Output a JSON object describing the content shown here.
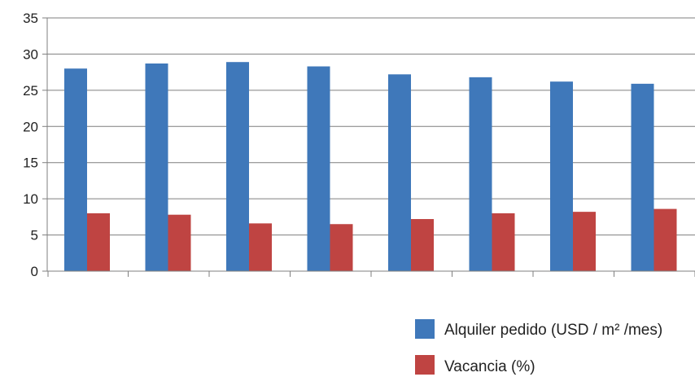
{
  "chart_data": {
    "type": "bar",
    "categories": [
      "",
      "",
      "",
      "",
      "",
      "",
      "",
      ""
    ],
    "series": [
      {
        "name": "Alquiler pedido (USD / m² /mes)",
        "color": "#3f78ba",
        "values": [
          28.0,
          28.7,
          28.9,
          28.3,
          27.2,
          26.8,
          26.2,
          25.9
        ]
      },
      {
        "name": "Vacancia (%)",
        "color": "#bf4442",
        "values": [
          8.0,
          7.8,
          6.6,
          6.5,
          7.2,
          8.0,
          8.2,
          8.6
        ]
      }
    ],
    "ylim": [
      0,
      35
    ],
    "yticks": [
      "0",
      "5",
      "10",
      "15",
      "20",
      "25",
      "30",
      "35"
    ],
    "grid": true,
    "legend": "bottom-right"
  }
}
